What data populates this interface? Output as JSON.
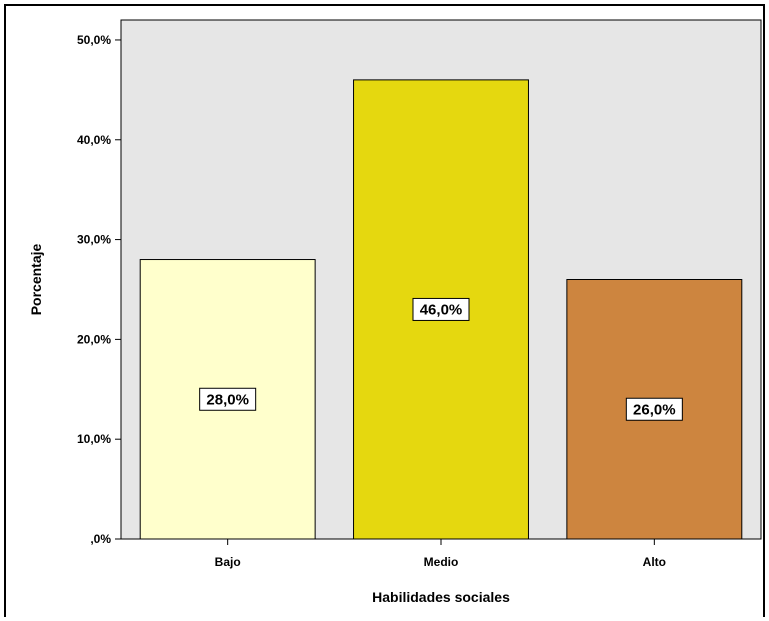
{
  "chart_data": {
    "type": "bar",
    "title": "",
    "xlabel": "Habilidades sociales",
    "ylabel": "Porcentaje",
    "categories": [
      "Bajo",
      "Medio",
      "Alto"
    ],
    "values": [
      28.0,
      46.0,
      26.0
    ],
    "data_labels": [
      "28,0%",
      "46,0%",
      "26,0%"
    ],
    "bar_colors": [
      "#FFFFCC",
      "#E5D80F",
      "#CD853F"
    ],
    "plot_background": "#E6E6E6",
    "ylim": [
      0,
      52
    ],
    "y_ticks": [
      0,
      10,
      20,
      30,
      40,
      50
    ],
    "y_tick_labels": [
      ",0%",
      "10,0%",
      "20,0%",
      "30,0%",
      "40,0%",
      "50,0%"
    ],
    "grid": false,
    "legend": "none"
  }
}
